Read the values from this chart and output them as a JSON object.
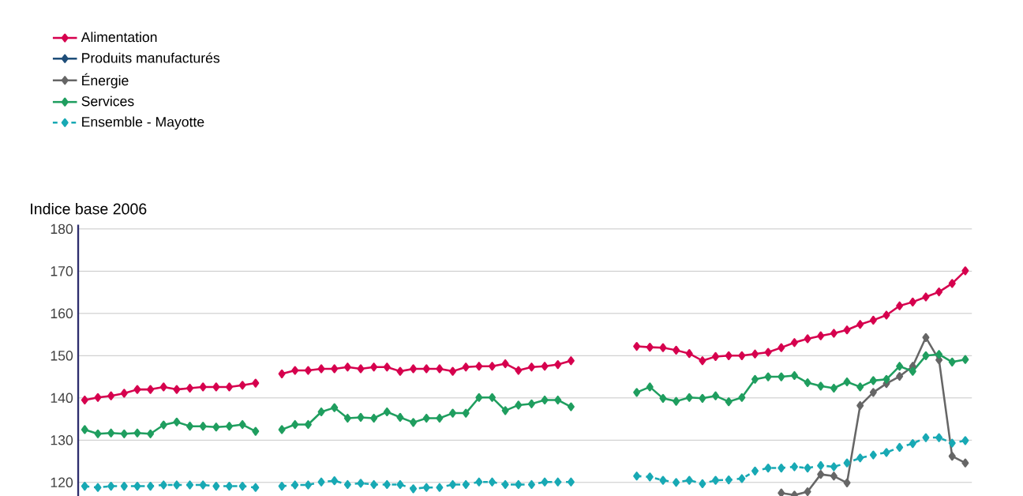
{
  "chart_data": {
    "type": "line",
    "ylabel": "Indice base 2006",
    "categories": [
      null,
      null,
      null,
      null,
      null,
      null,
      null,
      null,
      null,
      null,
      null,
      null,
      null,
      null,
      null,
      null,
      null,
      null,
      null,
      null,
      null,
      null,
      null,
      null,
      null,
      null,
      null,
      null,
      null,
      null,
      null,
      null,
      null,
      null,
      null,
      null,
      null,
      null,
      null,
      null,
      null,
      null,
      null,
      null,
      null,
      null,
      null,
      null,
      null,
      null,
      null,
      null,
      null,
      null,
      null,
      null,
      null,
      null,
      null,
      null,
      null,
      null,
      null,
      null,
      null,
      null,
      null,
      null
    ],
    "series": [
      {
        "name": "Alimentation",
        "color": "#d6004e",
        "values": [
          139.5,
          140.1,
          140.5,
          141.1,
          142.0,
          142.0,
          142.6,
          142.0,
          142.3,
          142.6,
          142.6,
          142.6,
          143.0,
          143.5,
          null,
          145.7,
          146.5,
          146.5,
          146.9,
          146.9,
          147.3,
          146.9,
          147.3,
          147.3,
          146.3,
          146.9,
          146.9,
          146.9,
          146.3,
          147.3,
          147.5,
          147.5,
          148.1,
          146.5,
          147.3,
          147.5,
          147.9,
          148.8,
          null,
          null,
          null,
          null,
          152.2,
          152.0,
          151.9,
          151.3,
          150.5,
          148.8,
          149.8,
          150.0,
          150.0,
          150.4,
          150.8,
          151.9,
          153.1,
          154.0,
          154.7,
          155.3,
          156.1,
          157.4,
          158.4,
          159.6,
          161.8,
          162.7,
          163.9,
          165.1,
          167.1,
          170.1
        ]
      },
      {
        "name": "Produits manufacturés",
        "color": "#1f4e79",
        "values": [
          null,
          null,
          null,
          null,
          null,
          null,
          null,
          null,
          null,
          null,
          null,
          null,
          null,
          null,
          null,
          null,
          null,
          null,
          null,
          null,
          null,
          null,
          null,
          null,
          null,
          null,
          null,
          null,
          null,
          null,
          null,
          null,
          null,
          null,
          null,
          null,
          null,
          null,
          null,
          null,
          null,
          null,
          null,
          null,
          null,
          null,
          null,
          null,
          null,
          null,
          null,
          null,
          null,
          null,
          null,
          null,
          null,
          null,
          null,
          null,
          null,
          null,
          null,
          null,
          null,
          null,
          null,
          null
        ]
      },
      {
        "name": "Énergie",
        "color": "#666666",
        "values": [
          null,
          null,
          null,
          null,
          null,
          null,
          null,
          null,
          null,
          null,
          null,
          null,
          null,
          null,
          null,
          null,
          null,
          null,
          null,
          null,
          null,
          null,
          null,
          null,
          null,
          null,
          null,
          null,
          null,
          null,
          null,
          null,
          null,
          null,
          null,
          null,
          null,
          null,
          null,
          null,
          null,
          null,
          null,
          null,
          null,
          null,
          null,
          null,
          null,
          null,
          null,
          null,
          null,
          117.5,
          117.0,
          117.8,
          121.9,
          121.5,
          119.9,
          138.2,
          141.3,
          143.4,
          145.1,
          147.5,
          154.3,
          149.0,
          126.2,
          124.6
        ]
      },
      {
        "name": "Services",
        "color": "#1f9e5f",
        "values": [
          132.5,
          131.5,
          131.7,
          131.5,
          131.7,
          131.5,
          133.6,
          134.3,
          133.3,
          133.3,
          133.1,
          133.3,
          133.7,
          132.1,
          null,
          132.5,
          133.7,
          133.7,
          136.7,
          137.7,
          135.2,
          135.4,
          135.2,
          136.7,
          135.4,
          134.2,
          135.2,
          135.2,
          136.4,
          136.4,
          140.1,
          140.1,
          137.0,
          138.3,
          138.6,
          139.5,
          139.5,
          137.9,
          null,
          null,
          null,
          null,
          141.3,
          142.6,
          139.9,
          139.2,
          140.1,
          139.9,
          140.5,
          139.1,
          140.1,
          144.4,
          145.0,
          145.0,
          145.3,
          143.6,
          142.8,
          142.3,
          143.8,
          142.6,
          144.1,
          144.4,
          147.5,
          146.3,
          150.0,
          150.3,
          148.5,
          149.1
        ]
      },
      {
        "name": "Ensemble - Mayotte",
        "color": "#18a9b4",
        "line_style": "dashed",
        "values": [
          119.1,
          118.8,
          119.1,
          119.1,
          119.1,
          119.1,
          119.4,
          119.4,
          119.4,
          119.4,
          119.1,
          119.1,
          119.1,
          118.8,
          null,
          119.1,
          119.4,
          119.4,
          120.1,
          120.4,
          119.5,
          119.8,
          119.5,
          119.5,
          119.5,
          118.5,
          118.8,
          118.8,
          119.5,
          119.5,
          120.1,
          120.1,
          119.5,
          119.5,
          119.5,
          120.1,
          120.1,
          120.1,
          null,
          null,
          null,
          null,
          121.5,
          121.3,
          120.5,
          120.0,
          120.5,
          119.7,
          120.5,
          120.6,
          120.9,
          122.7,
          123.4,
          123.4,
          123.7,
          123.4,
          124.0,
          123.7,
          124.6,
          125.8,
          126.5,
          127.1,
          128.3,
          129.2,
          130.6,
          130.6,
          129.3,
          129.9
        ]
      }
    ],
    "ylim": [
      116.8,
      181
    ],
    "yticks": [
      120,
      130,
      140,
      150,
      160,
      170,
      180
    ],
    "grid": true,
    "legend": "top left",
    "marker": "diamond",
    "line_style": "solid",
    "tick_labels": "y"
  }
}
